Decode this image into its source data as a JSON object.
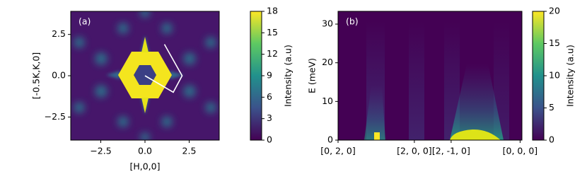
{
  "chart_data": [
    {
      "type": "heatmap",
      "panel_label": "(a)",
      "xlabel": "[H,0,0]",
      "ylabel": "[-0.5K,K,0]",
      "xlim": [
        -4.2,
        4.2
      ],
      "ylim": [
        -3.9,
        3.9
      ],
      "xticks": [
        {
          "value": -2.5,
          "label": "−2.5"
        },
        {
          "value": 0,
          "label": "0.0"
        },
        2.5
      ],
      "yticks": [
        {
          "value": -2.5,
          "label": "−2.5"
        },
        {
          "value": 0,
          "label": "0.0"
        },
        2.5
      ],
      "series": [
        {
          "color": "#ffffff",
          "x": [
            0,
            1.6,
            2.1,
            1.1
          ],
          "y": [
            0,
            -1.0,
            0,
            1.9
          ]
        }
      ],
      "colorbar": {
        "label": "Intensity (a.u)",
        "lim": [
          0,
          18
        ],
        "ticks": [
          0,
          3,
          6,
          9,
          12,
          15,
          18
        ]
      }
    },
    {
      "type": "heatmap",
      "panel_label": "(b)",
      "ylabel": "E (meV)",
      "xlim": [
        0,
        1
      ],
      "ylim": [
        0,
        33.3
      ],
      "xticks": [
        {
          "value": 0,
          "label": "[0, 2, 0]"
        },
        {
          "value": 0.415,
          "label": "[2, 0, 0]"
        },
        {
          "value": 0.615,
          "label": "[2, -1, 0]"
        },
        {
          "value": 0.99,
          "label": "[0, 0, 0]"
        }
      ],
      "yticks": [
        0,
        10,
        20,
        30
      ],
      "colorbar": {
        "label": "Intensity (a.u)",
        "lim": [
          0,
          20
        ],
        "ticks": [
          0,
          5,
          10,
          15,
          20
        ]
      }
    }
  ]
}
